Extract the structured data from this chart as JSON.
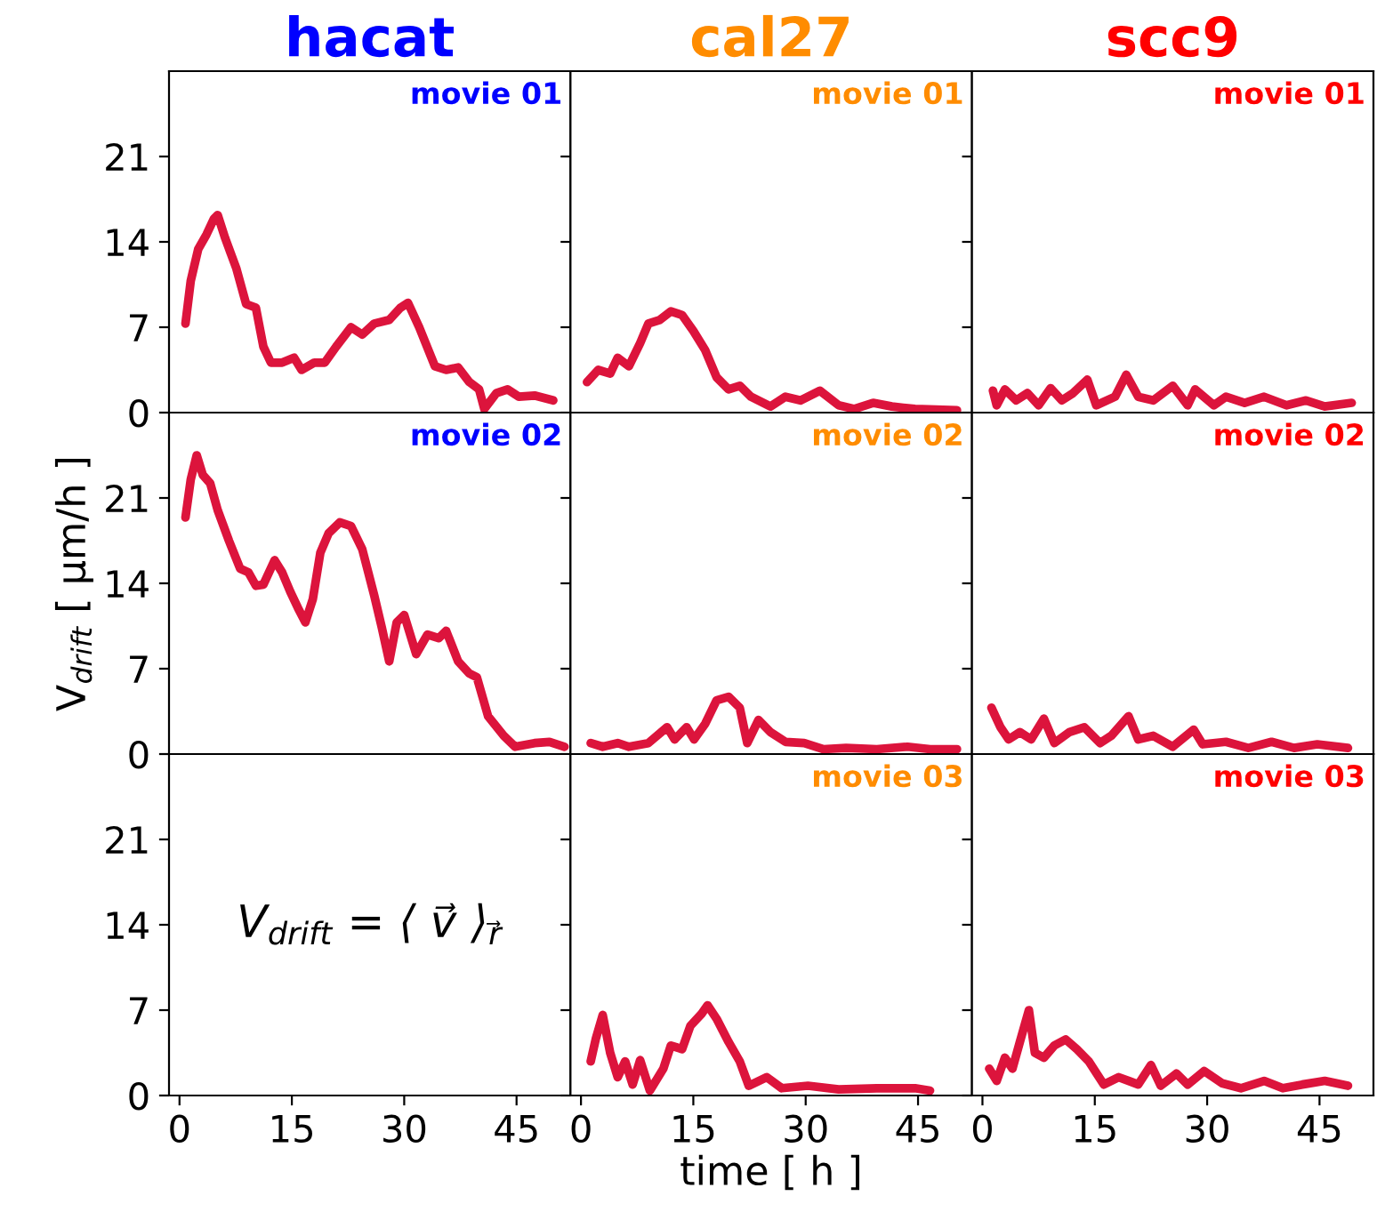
{
  "chart_data": [
    {
      "type": "line",
      "title": "hacat",
      "annotations": [
        "movie 01"
      ],
      "xlim": [
        -1.4,
        52.2
      ],
      "ylim": [
        0,
        28
      ],
      "yticks": [
        0,
        7,
        14,
        21
      ],
      "tick_labels": "y",
      "x": [
        0.8,
        1.5,
        2.5,
        3.6,
        4.6,
        5.1,
        6.1,
        7.6,
        8.9,
        10.2,
        11.2,
        12.2,
        13.7,
        15.3,
        16.3,
        18,
        19.4,
        20.9,
        22.9,
        24.4,
        26,
        28,
        29.5,
        30.5,
        32,
        34.1,
        35.6,
        37.2,
        38.7,
        40,
        40.7,
        42.3,
        43.8,
        45.3,
        47.4,
        49.9
      ],
      "series": [
        {
          "color": "#dc143c",
          "values": [
            7.3,
            10.8,
            13.4,
            14.6,
            15.9,
            16.2,
            14.3,
            11.8,
            8.9,
            8.6,
            5.4,
            4.1,
            4.1,
            4.5,
            3.5,
            4.1,
            4.1,
            5.4,
            7.0,
            6.4,
            7.3,
            7.6,
            8.6,
            9.0,
            7.0,
            3.8,
            3.5,
            3.7,
            2.5,
            1.9,
            0.3,
            1.6,
            1.9,
            1.3,
            1.4,
            1.0
          ]
        }
      ]
    },
    {
      "type": "line",
      "title": "cal27",
      "annotations": [
        "movie 01"
      ],
      "xlim": [
        -1.4,
        52.2
      ],
      "ylim": [
        0,
        28
      ],
      "yticks": [
        0,
        7,
        14,
        21
      ],
      "tick_labels": false,
      "x": [
        0.8,
        2.3,
        3.9,
        4.9,
        6.4,
        7.9,
        9.0,
        10.5,
        12,
        13.5,
        15,
        16.6,
        18.1,
        19.7,
        21.2,
        22.7,
        25.3,
        27.3,
        29.3,
        31.9,
        34.4,
        36.5,
        39,
        41.5,
        44.6,
        50.2
      ],
      "series": [
        {
          "color": "#dc143c",
          "values": [
            2.5,
            3.5,
            3.2,
            4.5,
            3.8,
            5.7,
            7.3,
            7.6,
            8.3,
            8.0,
            6.7,
            5.1,
            2.9,
            1.9,
            2.2,
            1.3,
            0.5,
            1.3,
            1.0,
            1.8,
            0.6,
            0.3,
            0.8,
            0.5,
            0.3,
            0.2
          ]
        }
      ]
    },
    {
      "type": "line",
      "title": "scc9",
      "annotations": [
        "movie 01"
      ],
      "xlim": [
        -1.4,
        52.2
      ],
      "ylim": [
        0,
        28
      ],
      "yticks": [
        0,
        7,
        14,
        21
      ],
      "tick_labels": false,
      "x": [
        1.4,
        1.9,
        3,
        4.5,
        6,
        7.5,
        9.1,
        10.6,
        12.1,
        14,
        15.2,
        17.7,
        19.2,
        20.8,
        22.8,
        25.4,
        27.4,
        28.4,
        30.9,
        32.5,
        35,
        37.6,
        40.6,
        43.2,
        45.7,
        49.3
      ],
      "series": [
        {
          "color": "#dc143c",
          "values": [
            1.8,
            0.6,
            1.9,
            1.0,
            1.6,
            0.6,
            2.0,
            1.0,
            1.6,
            2.7,
            0.6,
            1.3,
            3.1,
            1.3,
            1.0,
            2.2,
            0.6,
            1.9,
            0.6,
            1.3,
            0.8,
            1.3,
            0.6,
            1.0,
            0.5,
            0.8
          ]
        }
      ]
    },
    {
      "type": "line",
      "annotations": [
        "movie 02"
      ],
      "ylabel": "V$_{drift}$ [ μm/h ]",
      "xlim": [
        -1.4,
        52.2
      ],
      "ylim": [
        0,
        28
      ],
      "yticks": [
        0,
        7,
        14,
        21
      ],
      "tick_labels": "y",
      "x": [
        0.8,
        1.5,
        2.3,
        3.1,
        4.1,
        5.1,
        6.6,
        8.1,
        9.2,
        10.2,
        11.2,
        12.7,
        13.7,
        14.8,
        15.8,
        16.8,
        17.8,
        18.8,
        19.9,
        21.4,
        22.9,
        24.4,
        26,
        27,
        28,
        29,
        30,
        31.6,
        33.1,
        34.6,
        35.6,
        37.2,
        38.7,
        39.7,
        41.2,
        43.3,
        44.8,
        47.4,
        49.4,
        51.4
      ],
      "series": [
        {
          "color": "#dc143c",
          "values": [
            19.4,
            22.5,
            24.5,
            22.9,
            22.2,
            20,
            17.5,
            15.2,
            14.9,
            13.8,
            13.9,
            15.9,
            14.9,
            13.3,
            12,
            10.8,
            12.7,
            16.5,
            18.1,
            19,
            18.7,
            16.8,
            13,
            10.4,
            7.6,
            10.8,
            11.4,
            8.2,
            9.8,
            9.5,
            10.1,
            7.6,
            6.6,
            6.3,
            3.1,
            1.5,
            0.6,
            0.9,
            1.0,
            0.6
          ]
        }
      ]
    },
    {
      "type": "line",
      "annotations": [
        "movie 02"
      ],
      "xlim": [
        -1.4,
        52.2
      ],
      "ylim": [
        0,
        28
      ],
      "yticks": [
        0,
        7,
        14,
        21
      ],
      "tick_labels": false,
      "x": [
        1.3,
        2.9,
        4.9,
        6.4,
        9,
        11.5,
        12.5,
        14.1,
        15.1,
        16.6,
        18.1,
        19.7,
        21.2,
        22.2,
        23.7,
        25.3,
        27.3,
        29.8,
        32.4,
        35.4,
        39.5,
        43.6,
        46.6,
        50.2
      ],
      "series": [
        {
          "color": "#dc143c",
          "values": [
            0.9,
            0.6,
            0.9,
            0.6,
            0.9,
            2.2,
            1.2,
            2.2,
            1.2,
            2.5,
            4.4,
            4.7,
            3.8,
            0.9,
            2.8,
            1.8,
            1.0,
            0.9,
            0.4,
            0.5,
            0.4,
            0.6,
            0.4,
            0.4
          ]
        }
      ]
    },
    {
      "type": "line",
      "annotations": [
        "movie 02"
      ],
      "xlim": [
        -1.4,
        52.2
      ],
      "ylim": [
        0,
        28
      ],
      "yticks": [
        0,
        7,
        14,
        21
      ],
      "tick_labels": false,
      "x": [
        1.2,
        2.4,
        3.5,
        5,
        6.5,
        8.2,
        9.6,
        11.6,
        13.6,
        15.7,
        17.2,
        19.5,
        20.8,
        22.8,
        25.4,
        28.2,
        29.4,
        32.5,
        35.5,
        38.6,
        41.6,
        44.7,
        48.8
      ],
      "series": [
        {
          "color": "#dc143c",
          "values": [
            3.8,
            2.2,
            1.2,
            1.8,
            1.2,
            2.9,
            0.9,
            1.8,
            2.2,
            0.9,
            1.5,
            3.1,
            1.2,
            1.5,
            0.6,
            2.0,
            0.8,
            1.0,
            0.5,
            1.0,
            0.5,
            0.8,
            0.5
          ]
        }
      ]
    },
    {
      "type": "line",
      "annotations": [
        "V$_{drift}$ = ⟨ v⃗ ⟩$_{r⃗}$"
      ],
      "xlim": [
        -1.4,
        52.2
      ],
      "ylim": [
        0,
        28
      ],
      "xticks": [
        0,
        15,
        30,
        45
      ],
      "yticks": [
        0,
        7,
        14,
        21
      ]
    },
    {
      "type": "line",
      "annotations": [
        "movie 03"
      ],
      "xlabel": "time [ h ]",
      "xlim": [
        -1.4,
        52.2
      ],
      "ylim": [
        0,
        28
      ],
      "xticks": [
        0,
        15,
        30,
        45
      ],
      "yticks": [
        0,
        7,
        14,
        21
      ],
      "tick_labels": "x",
      "x": [
        1.3,
        2.0,
        2.9,
        3.9,
        4.9,
        5.9,
        6.9,
        7.9,
        9.2,
        11,
        12,
        13.5,
        14.6,
        16.1,
        16.9,
        18.1,
        19.7,
        21.2,
        22.4,
        24.8,
        26.8,
        30.3,
        34.4,
        39.5,
        44.6,
        46.6
      ],
      "series": [
        {
          "color": "#dc143c",
          "values": [
            2.8,
            4.7,
            6.6,
            3.5,
            1.5,
            2.8,
            0.9,
            2.9,
            0.4,
            2.2,
            4.1,
            3.8,
            5.7,
            6.7,
            7.4,
            6.3,
            4.4,
            2.8,
            0.8,
            1.5,
            0.6,
            0.8,
            0.5,
            0.6,
            0.6,
            0.4
          ]
        }
      ]
    },
    {
      "type": "line",
      "annotations": [
        "movie 03"
      ],
      "xlim": [
        -1.4,
        52.2
      ],
      "ylim": [
        0,
        28
      ],
      "xticks": [
        0,
        15,
        30,
        45
      ],
      "yticks": [
        0,
        7,
        14,
        21
      ],
      "tick_labels": "x",
      "x": [
        0.9,
        1.9,
        3.0,
        4.0,
        5,
        6.2,
        7,
        8.2,
        9.6,
        11.1,
        12.6,
        14.2,
        16.2,
        18.2,
        20.8,
        22.5,
        23.8,
        25.9,
        27.4,
        29.6,
        32,
        34.5,
        37.6,
        40.1,
        42.7,
        45.7,
        48.8
      ],
      "series": [
        {
          "color": "#dc143c",
          "values": [
            2.2,
            1.2,
            3.1,
            2.2,
            4.4,
            7.0,
            3.5,
            3.1,
            4.1,
            4.6,
            3.8,
            2.8,
            0.9,
            1.5,
            0.9,
            2.5,
            0.8,
            1.8,
            0.9,
            2.0,
            1.0,
            0.6,
            1.2,
            0.6,
            0.9,
            1.2,
            0.8
          ]
        }
      ]
    }
  ]
}
